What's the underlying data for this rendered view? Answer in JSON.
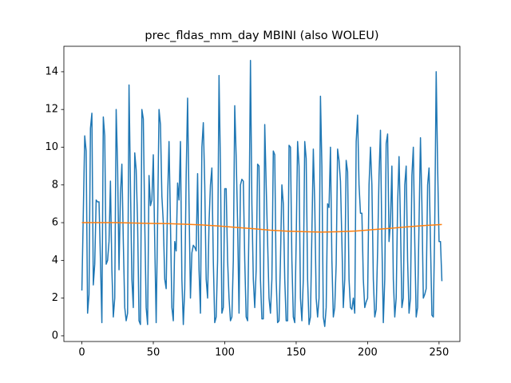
{
  "chart_data": {
    "type": "line",
    "title": "prec_fldas_mm_day MBINI (also WOLEU)",
    "xlim": [
      -12.6,
      264.6
    ],
    "xticks": [
      0,
      50,
      100,
      150,
      200,
      250
    ],
    "ylim": [
      -0.3,
      15.35
    ],
    "yticks": [
      0,
      2,
      4,
      6,
      8,
      10,
      12,
      14
    ],
    "series": [
      {
        "color": "#1f77b4",
        "x": [
          0,
          1,
          2,
          3,
          4,
          5,
          6,
          7,
          8,
          9,
          10,
          11,
          12,
          13,
          14,
          15,
          16,
          17,
          18,
          19,
          20,
          21,
          22,
          23,
          24,
          25,
          26,
          27,
          28,
          29,
          30,
          31,
          32,
          33,
          34,
          35,
          36,
          37,
          38,
          39,
          40,
          41,
          42,
          43,
          44,
          45,
          46,
          47,
          48,
          49,
          50,
          51,
          52,
          53,
          54,
          55,
          56,
          57,
          58,
          59,
          60,
          61,
          62,
          63,
          64,
          65,
          66,
          67,
          68,
          69,
          70,
          71,
          72,
          73,
          74,
          75,
          76,
          77,
          78,
          79,
          80,
          81,
          82,
          83,
          84,
          85,
          86,
          87,
          88,
          89,
          90,
          91,
          92,
          93,
          94,
          95,
          96,
          97,
          98,
          99,
          100,
          101,
          102,
          103,
          104,
          105,
          106,
          107,
          108,
          109,
          110,
          111,
          112,
          113,
          114,
          115,
          116,
          117,
          118,
          119,
          120,
          121,
          122,
          123,
          124,
          125,
          126,
          127,
          128,
          129,
          130,
          131,
          132,
          133,
          134,
          135,
          136,
          137,
          138,
          139,
          140,
          141,
          142,
          143,
          144,
          145,
          146,
          147,
          148,
          149,
          150,
          151,
          152,
          153,
          154,
          155,
          156,
          157,
          158,
          159,
          160,
          161,
          162,
          163,
          164,
          165,
          166,
          167,
          168,
          169,
          170,
          171,
          172,
          173,
          174,
          175,
          176,
          177,
          178,
          179,
          180,
          181,
          182,
          183,
          184,
          185,
          186,
          187,
          188,
          189,
          190,
          191,
          192,
          193,
          194,
          195,
          196,
          197,
          198,
          199,
          200,
          201,
          202,
          203,
          204,
          205,
          206,
          207,
          208,
          209,
          210,
          211,
          212,
          213,
          214,
          215,
          216,
          217,
          218,
          219,
          220,
          221,
          222,
          223,
          224,
          225,
          226,
          227,
          228,
          229,
          230,
          231,
          232,
          233,
          234,
          235,
          236,
          237,
          238,
          239,
          240,
          241,
          242,
          243,
          244,
          245,
          246,
          247,
          248,
          249,
          250,
          251,
          252
        ],
        "values": [
          2.4,
          6.5,
          10.6,
          9.8,
          1.2,
          2.2,
          11.0,
          11.8,
          2.7,
          3.8,
          7.2,
          7.1,
          7.1,
          4.0,
          0.7,
          11.6,
          10.6,
          3.8,
          4.0,
          5.0,
          8.2,
          3.5,
          1.0,
          2.0,
          12.0,
          9.0,
          3.5,
          7.5,
          9.1,
          5.0,
          1.5,
          0.8,
          1.2,
          13.3,
          8.0,
          3.0,
          1.5,
          9.7,
          8.8,
          6.0,
          0.8,
          0.6,
          12.0,
          11.5,
          6.0,
          1.5,
          0.6,
          8.5,
          6.9,
          7.2,
          9.6,
          5.0,
          0.7,
          6.0,
          12.0,
          11.2,
          7.4,
          6.0,
          3.0,
          2.5,
          7.3,
          10.3,
          6.0,
          1.5,
          0.8,
          5.0,
          4.5,
          8.1,
          7.2,
          10.3,
          3.0,
          0.6,
          2.5,
          8.5,
          12.6,
          7.0,
          2.0,
          4.4,
          4.8,
          4.7,
          4.5,
          8.6,
          3.5,
          1.2,
          10.0,
          11.3,
          8.0,
          3.0,
          2.0,
          6.0,
          8.0,
          8.9,
          4.0,
          0.7,
          1.0,
          4.0,
          13.8,
          9.0,
          1.2,
          1.5,
          7.8,
          7.8,
          4.0,
          2.0,
          0.8,
          1.0,
          4.0,
          12.2,
          9.5,
          6.0,
          1.2,
          8.0,
          8.3,
          8.2,
          4.0,
          1.0,
          0.8,
          6.0,
          14.6,
          7.0,
          3.0,
          1.5,
          3.5,
          9.1,
          9.0,
          3.0,
          0.9,
          0.9,
          11.2,
          8.0,
          5.0,
          2.0,
          1.2,
          3.0,
          9.8,
          9.6,
          3.0,
          0.7,
          0.8,
          4.0,
          8.0,
          7.0,
          3.0,
          0.8,
          0.8,
          10.1,
          10.0,
          4.0,
          1.0,
          0.7,
          5.0,
          10.3,
          9.0,
          2.0,
          0.8,
          3.0,
          10.3,
          9.4,
          3.0,
          0.6,
          1.0,
          5.5,
          9.9,
          7.0,
          2.0,
          1.0,
          2.0,
          12.7,
          9.0,
          1.0,
          0.5,
          1.5,
          7.0,
          6.8,
          10.0,
          4.0,
          1.0,
          1.5,
          3.8,
          9.9,
          9.3,
          8.2,
          5.0,
          1.5,
          3.0,
          9.3,
          8.7,
          3.0,
          1.5,
          1.4,
          2.0,
          1.2,
          10.3,
          11.7,
          8.0,
          6.5,
          6.5,
          3.0,
          1.5,
          1.8,
          2.0,
          8.0,
          10.0,
          8.0,
          3.0,
          1.0,
          1.4,
          4.5,
          8.5,
          10.9,
          5.0,
          0.7,
          3.0,
          10.2,
          10.7,
          5.0,
          6.0,
          9.0,
          3.0,
          1.0,
          2.0,
          7.0,
          9.5,
          6.0,
          1.5,
          2.0,
          8.0,
          9.0,
          4.0,
          1.2,
          2.0,
          8.5,
          10.0,
          5.0,
          1.0,
          1.5,
          6.0,
          10.5,
          7.0,
          2.0,
          2.2,
          2.5,
          8.0,
          8.9,
          5.0,
          1.1,
          1.0,
          6.0,
          14.0,
          9.0,
          5.0,
          5.0,
          2.9
        ]
      },
      {
        "color": "#ff7f0e",
        "x": [
          0,
          12,
          24,
          36,
          48,
          60,
          72,
          84,
          96,
          108,
          120,
          132,
          144,
          156,
          168,
          180,
          192,
          204,
          216,
          228,
          240,
          252
        ],
        "values": [
          6.0,
          6.0,
          6.0,
          5.98,
          5.96,
          5.95,
          5.92,
          5.88,
          5.82,
          5.75,
          5.68,
          5.6,
          5.55,
          5.52,
          5.5,
          5.52,
          5.56,
          5.63,
          5.7,
          5.78,
          5.85,
          5.9
        ]
      }
    ]
  }
}
